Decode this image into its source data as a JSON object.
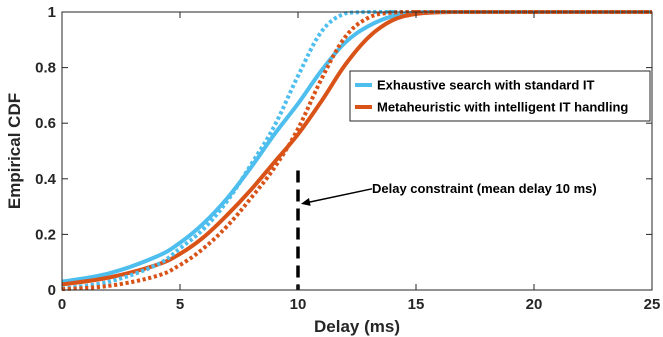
{
  "chart_data": {
    "type": "line",
    "title": "",
    "xlabel": "Delay (ms)",
    "ylabel": "Empirical CDF",
    "xlim": [
      0,
      25
    ],
    "ylim": [
      0,
      1
    ],
    "xticks": [
      0,
      5,
      10,
      15,
      20,
      25
    ],
    "xtick_labels": [
      "0",
      "5",
      "10",
      "15",
      "20",
      "25"
    ],
    "yticks": [
      0,
      0.2,
      0.4,
      0.6,
      0.8,
      1
    ],
    "ytick_labels": [
      "0",
      "0.2",
      "0.4",
      "0.6",
      "0.8",
      "1"
    ],
    "grid": false,
    "legend_position": "upper-right",
    "series": [
      {
        "name": "Exhaustive search with standard IT",
        "color": "#4DBEEE",
        "style": "solid",
        "in_legend": true,
        "x": [
          0,
          2,
          4,
          5,
          6,
          7,
          8,
          9,
          10,
          11,
          12,
          13,
          14,
          15,
          16,
          17,
          18,
          25
        ],
        "y": [
          0.03,
          0.06,
          0.12,
          0.17,
          0.24,
          0.33,
          0.44,
          0.56,
          0.67,
          0.79,
          0.89,
          0.95,
          0.985,
          0.998,
          1.0,
          1.0,
          1.0,
          1.0
        ]
      },
      {
        "name": "Metaheuristic with intelligent IT handling",
        "color": "#D95319",
        "style": "solid",
        "in_legend": true,
        "x": [
          0,
          2,
          4,
          5,
          6,
          7,
          8,
          9,
          10,
          11,
          12,
          13,
          14,
          15,
          16,
          17,
          18,
          25
        ],
        "y": [
          0.02,
          0.045,
          0.09,
          0.13,
          0.19,
          0.27,
          0.36,
          0.46,
          0.56,
          0.68,
          0.81,
          0.91,
          0.97,
          0.993,
          0.999,
          1.0,
          1.0,
          1.0
        ]
      },
      {
        "name": "",
        "color": "#4DBEEE",
        "style": "dotted",
        "in_legend": false,
        "x": [
          0,
          2,
          4,
          5,
          6,
          7,
          8,
          9,
          10,
          11,
          12,
          13,
          14,
          15,
          25
        ],
        "y": [
          0.005,
          0.03,
          0.09,
          0.15,
          0.22,
          0.32,
          0.45,
          0.59,
          0.77,
          0.93,
          0.995,
          1.0,
          1.0,
          1.0,
          1.0
        ]
      },
      {
        "name": "",
        "color": "#D95319",
        "style": "dotted",
        "in_legend": false,
        "x": [
          0,
          2,
          4,
          5,
          6,
          7,
          8,
          9,
          10,
          11,
          12,
          13,
          14,
          15,
          16,
          25
        ],
        "y": [
          0.003,
          0.015,
          0.05,
          0.09,
          0.15,
          0.23,
          0.33,
          0.44,
          0.58,
          0.76,
          0.91,
          0.98,
          0.998,
          1.0,
          1.0,
          1.0
        ]
      }
    ],
    "annotations": [
      {
        "text": "Delay constraint (mean delay 10 ms)",
        "x": 10,
        "y_top": 0.43,
        "y_bottom": 0,
        "arrow_to_y": 0.31,
        "line_style": "dashed",
        "color": "#000000"
      }
    ]
  }
}
